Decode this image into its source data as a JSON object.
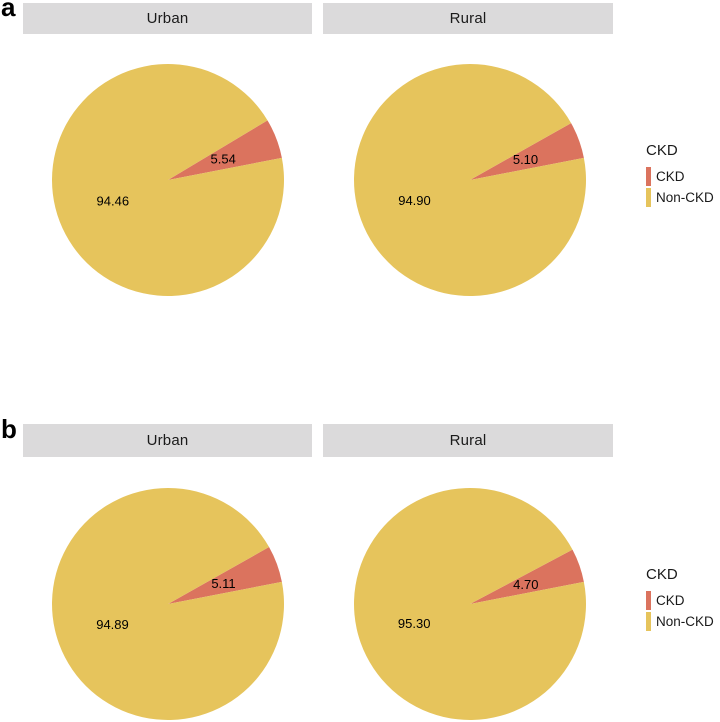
{
  "colors": {
    "ckd": "#DB735E",
    "non_ckd": "#E6C45C",
    "strip_bg": "#DBDADB",
    "strip_text": "#1A1A1A",
    "legend_text": "#1A1A1A",
    "pie_label_text": "#000000",
    "background": "#FFFFFF"
  },
  "panels": [
    {
      "tag": "a",
      "facets": [
        {
          "title": "Urban"
        },
        {
          "title": "Rural"
        }
      ]
    },
    {
      "tag": "b",
      "facets": [
        {
          "title": "Urban"
        },
        {
          "title": "Rural"
        }
      ]
    }
  ],
  "legend": {
    "title": "CKD",
    "items": [
      {
        "label": "CKD",
        "color": "#DB735E"
      },
      {
        "label": "Non-CKD",
        "color": "#E6C45C"
      }
    ]
  },
  "chart_data": [
    {
      "type": "pie",
      "panel": "a",
      "facet": "Urban",
      "legend_title": "CKD",
      "labels": [
        "CKD",
        "Non-CKD"
      ],
      "values": [
        5.54,
        94.46
      ],
      "value_labels": [
        "5.54",
        "94.46"
      ],
      "colors": [
        "#DB735E",
        "#E6C45C"
      ],
      "start_angle_deg": 11,
      "direction": "ccw",
      "label_radius_fraction": 0.51
    },
    {
      "type": "pie",
      "panel": "a",
      "facet": "Rural",
      "legend_title": "CKD",
      "labels": [
        "CKD",
        "Non-CKD"
      ],
      "values": [
        5.1,
        94.9
      ],
      "value_labels": [
        "5.10",
        "94.90"
      ],
      "colors": [
        "#DB735E",
        "#E6C45C"
      ],
      "start_angle_deg": 11,
      "direction": "ccw",
      "label_radius_fraction": 0.51
    },
    {
      "type": "pie",
      "panel": "b",
      "facet": "Urban",
      "legend_title": "CKD",
      "labels": [
        "CKD",
        "Non-CKD"
      ],
      "values": [
        5.11,
        94.89
      ],
      "value_labels": [
        "5.11",
        "94.89"
      ],
      "colors": [
        "#DB735E",
        "#E6C45C"
      ],
      "start_angle_deg": 11,
      "direction": "ccw",
      "label_radius_fraction": 0.51
    },
    {
      "type": "pie",
      "panel": "b",
      "facet": "Rural",
      "legend_title": "CKD",
      "labels": [
        "CKD",
        "Non-CKD"
      ],
      "values": [
        4.7,
        95.3
      ],
      "value_labels": [
        "4.70",
        "95.30"
      ],
      "colors": [
        "#DB735E",
        "#E6C45C"
      ],
      "start_angle_deg": 11,
      "direction": "ccw",
      "label_radius_fraction": 0.51
    }
  ]
}
